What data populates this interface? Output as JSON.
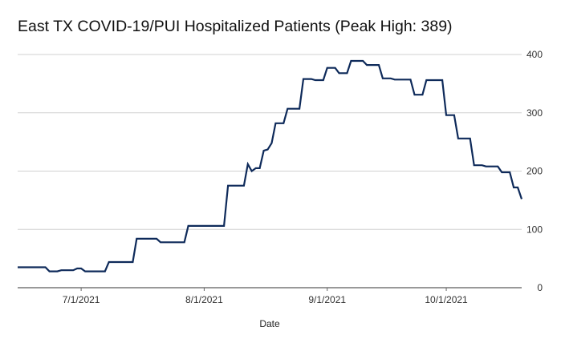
{
  "chart_data": {
    "type": "line",
    "title": "East TX COVID-19/PUI Hospitalized Patients (Peak High: 389)",
    "xlabel": "Date",
    "ylabel": "",
    "ylim": [
      0,
      400
    ],
    "y_ticks": [
      "0",
      "100",
      "200",
      "300",
      "400"
    ],
    "y_axis_side": "right",
    "x_ticks": [
      {
        "label": "7/1/2021",
        "date": "2021-07-01"
      },
      {
        "label": "8/1/2021",
        "date": "2021-08-01"
      },
      {
        "label": "9/1/2021",
        "date": "2021-09-01"
      },
      {
        "label": "10/1/2021",
        "date": "2021-10-01"
      }
    ],
    "xlim": [
      "2021-06-15",
      "2021-10-20"
    ],
    "grid": "horizontal",
    "color": "#0e2a5a",
    "series": [
      {
        "x": [
          "2021-06-15",
          "2021-06-22",
          "2021-06-23",
          "2021-06-25",
          "2021-06-26",
          "2021-06-28",
          "2021-06-29",
          "2021-06-30",
          "2021-07-01",
          "2021-07-02",
          "2021-07-03",
          "2021-07-05",
          "2021-07-06",
          "2021-07-07",
          "2021-07-08",
          "2021-07-09",
          "2021-07-11",
          "2021-07-12",
          "2021-07-14",
          "2021-07-15",
          "2021-07-16",
          "2021-07-17",
          "2021-07-19",
          "2021-07-20",
          "2021-07-21",
          "2021-07-22",
          "2021-07-24",
          "2021-07-25",
          "2021-07-26",
          "2021-07-27",
          "2021-07-28",
          "2021-07-29",
          "2021-07-31",
          "2021-08-01",
          "2021-08-02",
          "2021-08-03",
          "2021-08-05",
          "2021-08-06",
          "2021-08-07",
          "2021-08-08",
          "2021-08-09",
          "2021-08-10",
          "2021-08-11",
          "2021-08-12",
          "2021-08-13",
          "2021-08-14",
          "2021-08-15",
          "2021-08-16",
          "2021-08-17",
          "2021-08-18",
          "2021-08-19",
          "2021-08-20",
          "2021-08-21",
          "2021-08-22",
          "2021-08-23",
          "2021-08-24",
          "2021-08-25",
          "2021-08-26",
          "2021-08-27",
          "2021-08-28",
          "2021-08-29",
          "2021-08-30",
          "2021-08-31",
          "2021-09-01",
          "2021-09-02",
          "2021-09-03",
          "2021-09-04",
          "2021-09-05",
          "2021-09-06",
          "2021-09-07",
          "2021-09-08",
          "2021-09-09",
          "2021-09-10",
          "2021-09-11",
          "2021-09-12",
          "2021-09-13",
          "2021-09-14",
          "2021-09-15",
          "2021-09-16",
          "2021-09-17",
          "2021-09-18",
          "2021-09-19",
          "2021-09-20",
          "2021-09-21",
          "2021-09-22",
          "2021-09-23",
          "2021-09-24",
          "2021-09-25",
          "2021-09-26",
          "2021-09-27",
          "2021-09-28",
          "2021-09-29",
          "2021-09-30",
          "2021-10-01",
          "2021-10-02",
          "2021-10-03",
          "2021-10-04",
          "2021-10-05",
          "2021-10-06",
          "2021-10-07",
          "2021-10-08",
          "2021-10-09",
          "2021-10-10",
          "2021-10-11",
          "2021-10-12",
          "2021-10-13",
          "2021-10-14",
          "2021-10-15",
          "2021-10-16",
          "2021-10-17",
          "2021-10-18",
          "2021-10-19",
          "2021-10-20"
        ],
        "values": [
          35,
          35,
          28,
          28,
          30,
          30,
          30,
          33,
          33,
          28,
          28,
          28,
          28,
          28,
          44,
          44,
          44,
          44,
          44,
          84,
          84,
          84,
          84,
          84,
          78,
          78,
          78,
          78,
          78,
          78,
          106,
          106,
          106,
          106,
          106,
          106,
          106,
          106,
          175,
          175,
          175,
          175,
          175,
          212,
          200,
          205,
          205,
          235,
          237,
          248,
          282,
          282,
          282,
          307,
          307,
          307,
          307,
          358,
          358,
          358,
          356,
          356,
          356,
          377,
          377,
          377,
          368,
          368,
          368,
          389,
          389,
          389,
          389,
          382,
          382,
          382,
          382,
          359,
          359,
          359,
          357,
          357,
          357,
          357,
          357,
          331,
          331,
          331,
          356,
          356,
          356,
          356,
          356,
          296,
          296,
          296,
          256,
          256,
          256,
          256,
          210,
          210,
          210,
          208,
          208,
          208,
          208,
          198,
          198,
          198,
          172,
          172,
          152
        ]
      }
    ]
  }
}
